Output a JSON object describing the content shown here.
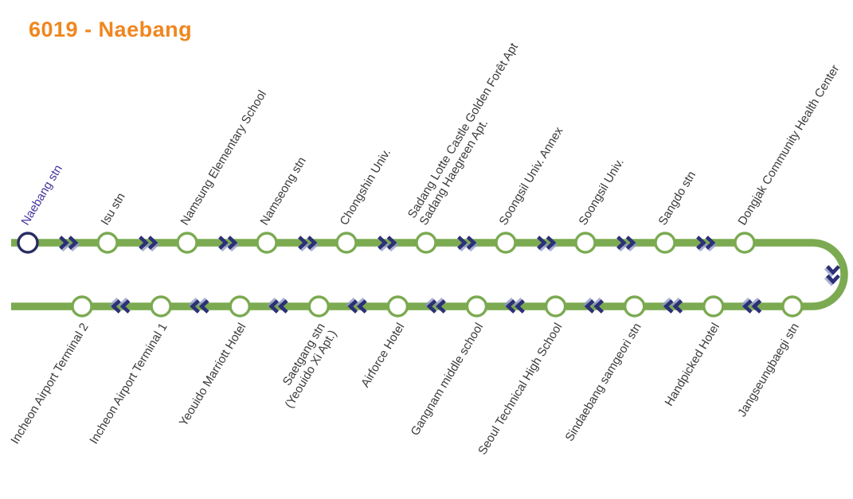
{
  "title": "6019 - Naebang",
  "colors": {
    "title_orange": "#F0861E",
    "route_green": "#7BAA51",
    "arrow_navy": "#2C3077",
    "arrow_shadow": "#8F97C5",
    "station_fill": "#FFFFFF",
    "label_dark": "#3A3A3A",
    "current_station_purple": "#44329B",
    "current_station_ring": "#2A2C63"
  },
  "icons": {
    "outbound": "chevrons-right-icon",
    "inbound": "chevrons-left-icon",
    "turnaround": "chevrons-down-icon"
  },
  "route": {
    "top_stations": [
      {
        "lines": [
          "Naebang stn"
        ],
        "current": true
      },
      {
        "lines": [
          "Isu stn"
        ]
      },
      {
        "lines": [
          "Namsung Elementary School"
        ]
      },
      {
        "lines": [
          "Namseong stn"
        ]
      },
      {
        "lines": [
          "Chongshin Univ."
        ]
      },
      {
        "lines": [
          "Sadang Lotte Castle Golden Forêt Apt",
          "Sadang Haegreen Apt."
        ]
      },
      {
        "lines": [
          "Soongsil Univ. Annex"
        ]
      },
      {
        "lines": [
          "Soongsil Univ."
        ]
      },
      {
        "lines": [
          "Sangdo stn"
        ]
      },
      {
        "lines": [
          "Dongjak Community Health Center"
        ]
      }
    ],
    "bottom_stations": [
      {
        "lines": [
          "Incheon Airport Terminal 2"
        ]
      },
      {
        "lines": [
          "Incheon Airport Terminal 1"
        ]
      },
      {
        "lines": [
          "Yeouido Marriott Hotel"
        ]
      },
      {
        "lines": [
          "Saetgang stn",
          "(Yeouido Xi Apt.)"
        ]
      },
      {
        "lines": [
          "Airforce Hotel"
        ]
      },
      {
        "lines": [
          "Gangnam middle school"
        ]
      },
      {
        "lines": [
          "Seoul Technical High School"
        ]
      },
      {
        "lines": [
          "Sindaebang samgeori stn"
        ]
      },
      {
        "lines": [
          "Handpicked Hotel"
        ]
      },
      {
        "lines": [
          "Jangseungbaegi stn"
        ]
      }
    ]
  }
}
